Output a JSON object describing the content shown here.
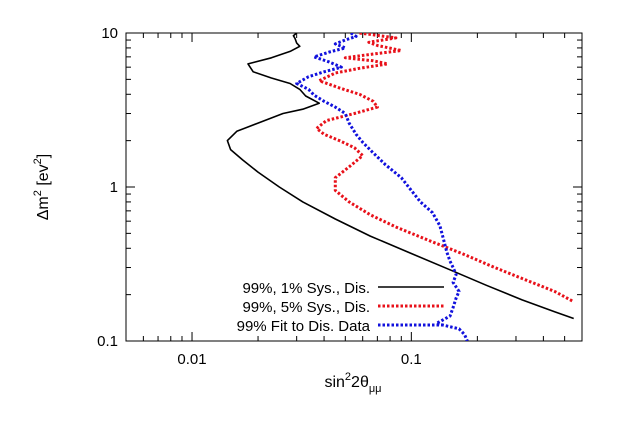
{
  "chart_data": {
    "type": "line",
    "xlabel": {
      "base": "sin",
      "sup": "2",
      "mid": "2θ",
      "sub": "μμ"
    },
    "ylabel": {
      "base": "Δm",
      "sup1": "2",
      "mid": " [ev",
      "sup2": "2",
      "end": "]"
    },
    "xscale": "log",
    "yscale": "log",
    "xlim": [
      0.005,
      0.6
    ],
    "ylim": [
      0.1,
      10
    ],
    "xticks": [
      {
        "value": 0.01,
        "label": "0.01"
      },
      {
        "value": 0.1,
        "label": "0.1"
      }
    ],
    "yticks": [
      {
        "value": 0.1,
        "label": "0.1"
      },
      {
        "value": 1,
        "label": "1"
      },
      {
        "value": 10,
        "label": "10"
      }
    ],
    "grid": false,
    "legend_position": "bottom-right",
    "series": [
      {
        "name": "99%, 1% Sys., Dis.",
        "color": "#000000",
        "style": "solid",
        "points": [
          [
            0.03,
            10
          ],
          [
            0.029,
            9.6
          ],
          [
            0.0295,
            9.2
          ],
          [
            0.03,
            8.6
          ],
          [
            0.031,
            8.2
          ],
          [
            0.028,
            7.6
          ],
          [
            0.023,
            6.9
          ],
          [
            0.018,
            6.3
          ],
          [
            0.019,
            5.6
          ],
          [
            0.023,
            5.1
          ],
          [
            0.028,
            4.7
          ],
          [
            0.031,
            4.3
          ],
          [
            0.033,
            3.9
          ],
          [
            0.038,
            3.5
          ],
          [
            0.032,
            3.2
          ],
          [
            0.026,
            3.0
          ],
          [
            0.02,
            2.6
          ],
          [
            0.016,
            2.3
          ],
          [
            0.0145,
            2.0
          ],
          [
            0.015,
            1.75
          ],
          [
            0.017,
            1.5
          ],
          [
            0.02,
            1.25
          ],
          [
            0.025,
            1.0
          ],
          [
            0.032,
            0.8
          ],
          [
            0.045,
            0.62
          ],
          [
            0.065,
            0.48
          ],
          [
            0.1,
            0.37
          ],
          [
            0.15,
            0.29
          ],
          [
            0.22,
            0.23
          ],
          [
            0.32,
            0.185
          ],
          [
            0.45,
            0.155
          ],
          [
            0.55,
            0.14
          ]
        ]
      },
      {
        "name": "99%, 5% Sys., Dis.",
        "color": "#e8111a",
        "style": "dotted",
        "points": [
          [
            0.058,
            10
          ],
          [
            0.085,
            9.3
          ],
          [
            0.064,
            8.7
          ],
          [
            0.07,
            8.3
          ],
          [
            0.09,
            7.7
          ],
          [
            0.062,
            7.2
          ],
          [
            0.05,
            6.9
          ],
          [
            0.067,
            6.6
          ],
          [
            0.078,
            6.3
          ],
          [
            0.058,
            5.9
          ],
          [
            0.045,
            5.5
          ],
          [
            0.038,
            4.9
          ],
          [
            0.047,
            4.4
          ],
          [
            0.058,
            4.0
          ],
          [
            0.067,
            3.6
          ],
          [
            0.07,
            3.3
          ],
          [
            0.055,
            3.0
          ],
          [
            0.041,
            2.7
          ],
          [
            0.037,
            2.4
          ],
          [
            0.04,
            2.2
          ],
          [
            0.047,
            2.0
          ],
          [
            0.055,
            1.8
          ],
          [
            0.06,
            1.6
          ],
          [
            0.052,
            1.35
          ],
          [
            0.045,
            1.15
          ],
          [
            0.045,
            0.95
          ],
          [
            0.052,
            0.8
          ],
          [
            0.065,
            0.66
          ],
          [
            0.085,
            0.55
          ],
          [
            0.12,
            0.45
          ],
          [
            0.17,
            0.37
          ],
          [
            0.24,
            0.3
          ],
          [
            0.33,
            0.25
          ],
          [
            0.45,
            0.21
          ],
          [
            0.55,
            0.18
          ]
        ]
      },
      {
        "name": "99% Fit to Dis. Data",
        "color": "#1111dd",
        "style": "dotted",
        "points": [
          [
            0.053,
            10
          ],
          [
            0.056,
            9.5
          ],
          [
            0.05,
            9.0
          ],
          [
            0.045,
            8.5
          ],
          [
            0.05,
            8.0
          ],
          [
            0.042,
            7.5
          ],
          [
            0.036,
            7.0
          ],
          [
            0.042,
            6.5
          ],
          [
            0.048,
            6.0
          ],
          [
            0.04,
            5.6
          ],
          [
            0.034,
            5.2
          ],
          [
            0.03,
            4.7
          ],
          [
            0.034,
            4.3
          ],
          [
            0.036,
            3.95
          ],
          [
            0.04,
            3.6
          ],
          [
            0.045,
            3.3
          ],
          [
            0.05,
            3.0
          ],
          [
            0.052,
            2.6
          ],
          [
            0.056,
            2.2
          ],
          [
            0.06,
            1.95
          ],
          [
            0.066,
            1.7
          ],
          [
            0.076,
            1.4
          ],
          [
            0.09,
            1.15
          ],
          [
            0.1,
            0.95
          ],
          [
            0.11,
            0.8
          ],
          [
            0.125,
            0.68
          ],
          [
            0.135,
            0.56
          ],
          [
            0.14,
            0.46
          ],
          [
            0.145,
            0.38
          ],
          [
            0.15,
            0.33
          ],
          [
            0.155,
            0.3
          ],
          [
            0.16,
            0.27
          ],
          [
            0.155,
            0.24
          ],
          [
            0.165,
            0.21
          ],
          [
            0.16,
            0.19
          ],
          [
            0.155,
            0.165
          ],
          [
            0.15,
            0.145
          ],
          [
            0.13,
            0.13
          ],
          [
            0.165,
            0.12
          ],
          [
            0.175,
            0.11
          ],
          [
            0.18,
            0.1
          ]
        ]
      }
    ]
  }
}
